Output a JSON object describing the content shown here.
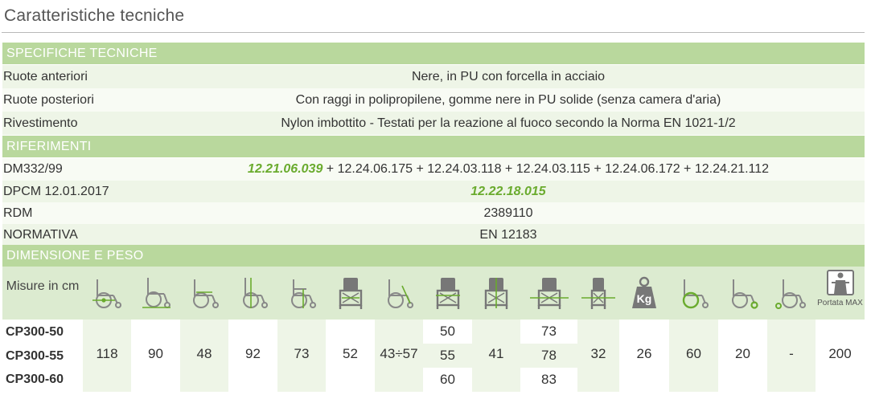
{
  "page": {
    "title": "Caratteristiche tecniche"
  },
  "spec": {
    "band": "SPECIFICHE TECNICHE",
    "rows": [
      {
        "label": "Ruote anteriori",
        "value": "Nere, in PU con forcella in acciaio"
      },
      {
        "label": "Ruote posteriori",
        "value": "Con raggi in polipropilene, gomme nere in PU solide (senza camera d'aria)"
      },
      {
        "label": "Rivestimento",
        "value": "Nylon imbottito - Testati per la reazione al fuoco secondo la Norma EN 1021-1/2"
      }
    ]
  },
  "ref": {
    "band": "RIFERIMENTI",
    "dm": {
      "label": "DM332/99",
      "highlight": "12.21.06.039",
      "rest": " + 12.24.06.175 + 12.24.03.118 + 12.24.03.115 + 12.24.06.172 + 12.24.21.112"
    },
    "dpcm": {
      "label": "DPCM 12.01.2017",
      "value": "12.22.18.015"
    },
    "rdm": {
      "label": "RDM",
      "value": "2389110"
    },
    "norm": {
      "label": "NORMATIVA",
      "value": "EN 12183"
    }
  },
  "dim": {
    "band": "DIMENSIONE E PESO",
    "misure": "Misure in cm",
    "portata": "Portata MAX",
    "kg": "Kg",
    "models": [
      "CP300-50",
      "CP300-55",
      "CP300-60"
    ],
    "columns": [
      {
        "icon": "seat-height-icon",
        "value": "118"
      },
      {
        "icon": "wheelchair-length-icon",
        "value": "90"
      },
      {
        "icon": "seat-depth-icon",
        "value": "48"
      },
      {
        "icon": "total-height-icon",
        "value": "92"
      },
      {
        "icon": "armrest-height-icon",
        "value": "73"
      },
      {
        "icon": "seat-width-icon",
        "value": "52"
      },
      {
        "icon": "backrest-angle-icon",
        "value": "43÷57"
      },
      {
        "icon": "front-width-icon",
        "values": [
          "50",
          "55",
          "60"
        ]
      },
      {
        "icon": "folded-height-icon",
        "value": "41"
      },
      {
        "icon": "total-width-icon",
        "values": [
          "73",
          "78",
          "83"
        ]
      },
      {
        "icon": "folded-width-icon",
        "value": "32"
      },
      {
        "icon": "weight-icon",
        "value": "26"
      },
      {
        "icon": "rear-wheel-icon",
        "value": "60"
      },
      {
        "icon": "front-wheel-icon",
        "value": "20"
      },
      {
        "icon": "anti-tip-icon",
        "value": "-"
      },
      {
        "icon": "max-load-icon",
        "value": "200"
      }
    ]
  }
}
